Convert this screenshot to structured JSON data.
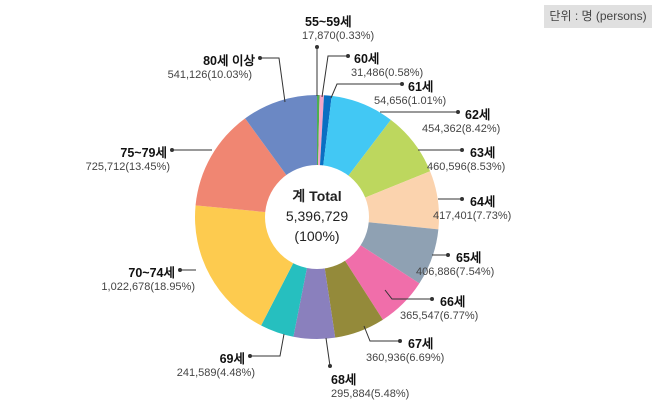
{
  "unit_label": "단위 : 명 (persons)",
  "chart_data": {
    "type": "pie",
    "donut": true,
    "center": {
      "label": "계 Total",
      "value": "5,396,729",
      "percent": "(100%)"
    },
    "slices": [
      {
        "name": "55~59세",
        "value": 17870,
        "value_label": "17,870(0.33%)",
        "percent": 0.33,
        "color": "#4caf50"
      },
      {
        "name": "60세",
        "value": 31486,
        "value_label": "31,486(0.58%)",
        "percent": 0.58,
        "color": "#f4a6c8"
      },
      {
        "name": "61세",
        "value": 54656,
        "value_label": "54,656(1.01%)",
        "percent": 1.01,
        "color": "#0a6fc2"
      },
      {
        "name": "62세",
        "value": 454362,
        "value_label": "454,362(8.42%)",
        "percent": 8.42,
        "color": "#42c8f4"
      },
      {
        "name": "63세",
        "value": 460596,
        "value_label": "460,596(8.53%)",
        "percent": 8.53,
        "color": "#bdd75e"
      },
      {
        "name": "64세",
        "value": 417401,
        "value_label": "417,401(7.73%)",
        "percent": 7.73,
        "color": "#fbd3ae"
      },
      {
        "name": "65세",
        "value": 406886,
        "value_label": "406,886(7.54%)",
        "percent": 7.54,
        "color": "#8fa1b3"
      },
      {
        "name": "66세",
        "value": 365547,
        "value_label": "365,547(6.77%)",
        "percent": 6.77,
        "color": "#f06eaa"
      },
      {
        "name": "67세",
        "value": 360936,
        "value_label": "360,936(6.69%)",
        "percent": 6.69,
        "color": "#948a3a"
      },
      {
        "name": "68세",
        "value": 295884,
        "value_label": "295,884(5.48%)",
        "percent": 5.48,
        "color": "#8a80bd"
      },
      {
        "name": "69세",
        "value": 241589,
        "value_label": "241,589(4.48%)",
        "percent": 4.48,
        "color": "#26bfbf"
      },
      {
        "name": "70~74세",
        "value": 1022678,
        "value_label": "1,022,678(18.95%)",
        "percent": 18.95,
        "color": "#fdcb4f"
      },
      {
        "name": "75~79세",
        "value": 725712,
        "value_label": "725,712(13.45%)",
        "percent": 13.45,
        "color": "#f08672"
      },
      {
        "name": "80세 이상",
        "value": 541126,
        "value_label": "541,126(10.03%)",
        "percent": 10.03,
        "color": "#6b88c4"
      }
    ]
  }
}
